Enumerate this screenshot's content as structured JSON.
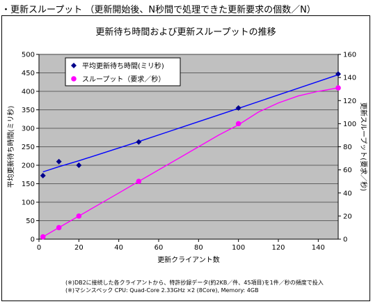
{
  "heading": "・更新スループット （更新開始後、N秒間で処理できた更新要求の個数／N）",
  "notes": [
    "(※)DB2に接続した各クライアントから、特許抄録データ(約2KB／件、45項目)を1件／秒の頻度で投入",
    "(※)マシンスペック CPU: Quad-Core 2.33GHz ×2 (8Core), Memory: 4GB"
  ],
  "chart_data": {
    "type": "line",
    "title": "更新待ち時間および更新スループットの推移",
    "xlabel": "更新クライアント数",
    "ylabel_left": "平均更新待ち時間(ミリ秒)",
    "ylabel_right": "更新スループット(要求／秒)",
    "xlim": [
      0,
      150
    ],
    "ylim_left": [
      0,
      500
    ],
    "ylim_right": [
      0,
      160
    ],
    "x_ticks": [
      0,
      20,
      40,
      60,
      80,
      100,
      120,
      140
    ],
    "y_left_ticks": [
      0,
      50,
      100,
      150,
      200,
      250,
      300,
      350,
      400,
      450,
      500
    ],
    "y_right_ticks": [
      0,
      20,
      40,
      60,
      80,
      100,
      120,
      140,
      160
    ],
    "grid": "horizontal",
    "plot_background": "#c0c0c0",
    "legend_position": "top-left",
    "series": [
      {
        "name": "平均更新待ち時間(ミリ秒)",
        "axis": "left",
        "color": "#00008b",
        "line_color": "#0000ff",
        "marker": "diamond",
        "x": [
          2,
          10,
          20,
          50,
          100,
          150
        ],
        "y": [
          172,
          210,
          200,
          263,
          355,
          447
        ],
        "trend_x": [
          2,
          10,
          20,
          50,
          100,
          150
        ],
        "trend_y": [
          182,
          196,
          212,
          264,
          354,
          445
        ]
      },
      {
        "name": "スループット（要求／秒）",
        "axis": "right",
        "color": "#ff00ff",
        "line_color": "#ff00ff",
        "marker": "circle",
        "x": [
          2,
          10,
          20,
          50,
          100,
          150
        ],
        "y": [
          2,
          10,
          20,
          50,
          100,
          131
        ],
        "trend_x": [
          2,
          10,
          20,
          30,
          40,
          50,
          60,
          70,
          80,
          90,
          100,
          110,
          120,
          130,
          140,
          150
        ],
        "trend_y": [
          2,
          10,
          20,
          30,
          40,
          50,
          60,
          70,
          80,
          90,
          99,
          110,
          118,
          124,
          128,
          131
        ]
      }
    ]
  }
}
